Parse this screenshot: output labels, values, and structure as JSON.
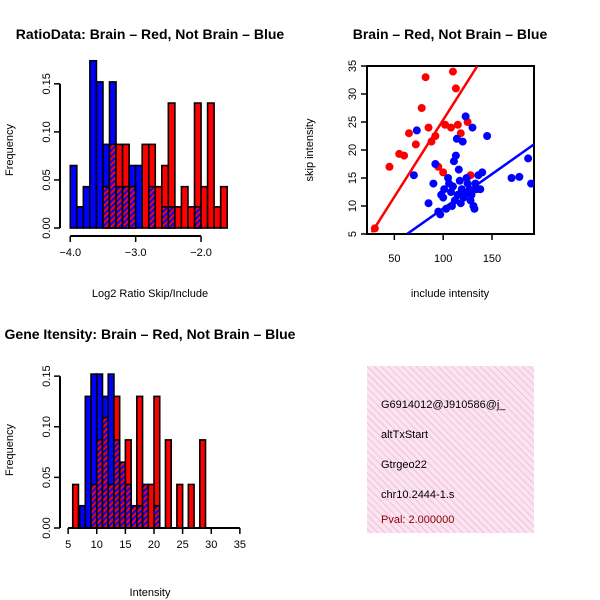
{
  "colors": {
    "red": "#ff0000",
    "blue": "#0000ff",
    "overlap": "#9b2cbe",
    "panel_fill": "#fae4f0",
    "panel_hatch": "#ef9fce",
    "pval": "#8b0000"
  },
  "chart_data": [
    {
      "id": "ratio_hist",
      "type": "bar",
      "title": "RatioData: Brain – Red, Not Brain – Blue",
      "xlabel": "Log2 Ratio Skip/Include",
      "ylabel": "Frequency",
      "xlim": [
        -4.05,
        -1.45
      ],
      "ylim": [
        0,
        0.18
      ],
      "xticks": [
        -4.0,
        -3.0,
        -2.0
      ],
      "xtick_labels": [
        "−4.0",
        "−3.0",
        "−2.0"
      ],
      "yticks": [
        0.0,
        0.05,
        0.1,
        0.15
      ],
      "ytick_labels": [
        "0.00",
        "0.05",
        "0.10",
        "0.15"
      ],
      "bin_width": 0.1,
      "series": [
        {
          "name": "Not Brain",
          "color": "blue",
          "bars": [
            {
              "x": -4.0,
              "y": 0.065
            },
            {
              "x": -3.9,
              "y": 0.022
            },
            {
              "x": -3.8,
              "y": 0.043
            },
            {
              "x": -3.7,
              "y": 0.174
            },
            {
              "x": -3.6,
              "y": 0.152
            },
            {
              "x": -3.5,
              "y": 0.087
            },
            {
              "x": -3.4,
              "y": 0.152
            },
            {
              "x": -3.3,
              "y": 0.043
            },
            {
              "x": -3.2,
              "y": 0.043
            },
            {
              "x": -3.1,
              "y": 0.065
            },
            {
              "x": -3.0,
              "y": 0.065
            },
            {
              "x": -2.8,
              "y": 0.043
            },
            {
              "x": -2.6,
              "y": 0.022
            },
            {
              "x": -2.5,
              "y": 0.022
            },
            {
              "x": -2.1,
              "y": 0.022
            }
          ]
        },
        {
          "name": "Brain",
          "color": "red",
          "bars": [
            {
              "x": -3.5,
              "y": 0.043
            },
            {
              "x": -3.4,
              "y": 0.087
            },
            {
              "x": -3.3,
              "y": 0.087
            },
            {
              "x": -3.2,
              "y": 0.087
            },
            {
              "x": -3.1,
              "y": 0.043
            },
            {
              "x": -2.9,
              "y": 0.087
            },
            {
              "x": -2.8,
              "y": 0.087
            },
            {
              "x": -2.7,
              "y": 0.043
            },
            {
              "x": -2.6,
              "y": 0.065
            },
            {
              "x": -2.5,
              "y": 0.13
            },
            {
              "x": -2.4,
              "y": 0.022
            },
            {
              "x": -2.3,
              "y": 0.043
            },
            {
              "x": -2.2,
              "y": 0.022
            },
            {
              "x": -2.1,
              "y": 0.13
            },
            {
              "x": -2.0,
              "y": 0.043
            },
            {
              "x": -1.9,
              "y": 0.13
            },
            {
              "x": -1.8,
              "y": 0.022
            },
            {
              "x": -1.7,
              "y": 0.043
            }
          ]
        }
      ]
    },
    {
      "id": "scatter",
      "type": "scatter",
      "title": "Brain – Red, Not Brain – Blue",
      "xlabel": "include intensity",
      "ylabel": "skip intensity",
      "xlim": [
        22,
        193
      ],
      "ylim": [
        5,
        35
      ],
      "xticks": [
        50,
        100,
        150
      ],
      "xtick_labels": [
        "50",
        "100",
        "150"
      ],
      "yticks": [
        5,
        10,
        15,
        20,
        25,
        30,
        35
      ],
      "ytick_labels": [
        "5",
        "10",
        "15",
        "20",
        "25",
        "30",
        "35"
      ],
      "series": [
        {
          "name": "Brain",
          "color": "red",
          "points": [
            [
              30,
              6
            ],
            [
              45,
              17
            ],
            [
              55,
              19.3
            ],
            [
              60,
              19
            ],
            [
              65,
              23
            ],
            [
              72,
              21
            ],
            [
              78,
              27.5
            ],
            [
              82,
              33
            ],
            [
              85,
              24
            ],
            [
              88,
              21.5
            ],
            [
              92,
              22.5
            ],
            [
              95,
              17
            ],
            [
              100,
              16
            ],
            [
              102,
              24.5
            ],
            [
              108,
              24
            ],
            [
              110,
              34
            ],
            [
              113,
              31
            ],
            [
              115,
              24.5
            ],
            [
              118,
              23
            ],
            [
              125,
              25
            ],
            [
              128,
              15.5
            ]
          ],
          "fit": [
            [
              27,
              5.3
            ],
            [
              135,
              35
            ]
          ]
        },
        {
          "name": "Not Brain",
          "color": "blue",
          "points": [
            [
              70,
              15.5
            ],
            [
              73,
              23.5
            ],
            [
              85,
              10.5
            ],
            [
              90,
              14
            ],
            [
              92,
              17.5
            ],
            [
              95,
              9
            ],
            [
              97,
              8.5
            ],
            [
              98,
              12
            ],
            [
              100,
              11.5
            ],
            [
              101,
              13
            ],
            [
              103,
              9.5
            ],
            [
              105,
              15
            ],
            [
              106,
              14
            ],
            [
              108,
              12.5
            ],
            [
              109,
              10
            ],
            [
              110,
              13.5
            ],
            [
              111,
              18
            ],
            [
              112,
              11
            ],
            [
              113,
              19
            ],
            [
              114,
              22
            ],
            [
              115,
              12
            ],
            [
              116,
              16.5
            ],
            [
              117,
              14.5
            ],
            [
              118,
              10.5
            ],
            [
              119,
              13
            ],
            [
              120,
              21.5
            ],
            [
              121,
              11.5
            ],
            [
              122,
              12
            ],
            [
              123,
              26
            ],
            [
              124,
              15
            ],
            [
              125,
              14
            ],
            [
              126,
              12.5
            ],
            [
              127,
              13
            ],
            [
              128,
              11
            ],
            [
              129,
              12
            ],
            [
              130,
              24
            ],
            [
              131,
              10
            ],
            [
              132,
              9.5
            ],
            [
              133,
              14
            ],
            [
              134,
              13
            ],
            [
              136,
              15.5
            ],
            [
              138,
              13
            ],
            [
              140,
              16
            ],
            [
              145,
              22.5
            ],
            [
              170,
              15
            ],
            [
              178,
              15.2
            ],
            [
              187,
              18.5
            ],
            [
              190,
              14
            ]
          ],
          "fit": [
            [
              63,
              5
            ],
            [
              193,
              21
            ]
          ]
        }
      ]
    },
    {
      "id": "intensity_hist",
      "type": "bar",
      "title": "Gene Itensity: Brain – Red, Not Brain – Blue",
      "xlabel": "Intensity",
      "ylabel": "Frequency",
      "xlim": [
        4.8,
        34.5
      ],
      "ylim": [
        0,
        0.16
      ],
      "xticks": [
        5,
        10,
        15,
        20,
        25,
        30,
        35
      ],
      "xtick_labels": [
        "5",
        "10",
        "15",
        "20",
        "25",
        "30",
        "35"
      ],
      "yticks": [
        0.0,
        0.05,
        0.1,
        0.15
      ],
      "ytick_labels": [
        "0.00",
        "0.05",
        "0.10",
        "0.15"
      ],
      "bin_width": 1,
      "series": [
        {
          "name": "Not Brain",
          "color": "blue",
          "bars": [
            {
              "x": 7,
              "y": 0.022
            },
            {
              "x": 8,
              "y": 0.13
            },
            {
              "x": 9,
              "y": 0.152
            },
            {
              "x": 10,
              "y": 0.152
            },
            {
              "x": 11,
              "y": 0.13
            },
            {
              "x": 12,
              "y": 0.152
            },
            {
              "x": 13,
              "y": 0.087
            },
            {
              "x": 14,
              "y": 0.065
            },
            {
              "x": 15,
              "y": 0.043
            },
            {
              "x": 16,
              "y": 0.022
            },
            {
              "x": 17,
              "y": 0.022
            },
            {
              "x": 18,
              "y": 0.043
            },
            {
              "x": 20,
              "y": 0.022
            }
          ]
        },
        {
          "name": "Brain",
          "color": "red",
          "bars": [
            {
              "x": 5.8,
              "y": 0.043
            },
            {
              "x": 9,
              "y": 0.043
            },
            {
              "x": 10,
              "y": 0.087
            },
            {
              "x": 11,
              "y": 0.109
            },
            {
              "x": 12,
              "y": 0.043
            },
            {
              "x": 13,
              "y": 0.13
            },
            {
              "x": 14,
              "y": 0.065
            },
            {
              "x": 15,
              "y": 0.087
            },
            {
              "x": 16,
              "y": 0.022
            },
            {
              "x": 17,
              "y": 0.13
            },
            {
              "x": 18,
              "y": 0.043
            },
            {
              "x": 19,
              "y": 0.043
            },
            {
              "x": 20,
              "y": 0.13
            },
            {
              "x": 22,
              "y": 0.087
            },
            {
              "x": 24,
              "y": 0.043
            },
            {
              "x": 26,
              "y": 0.043
            },
            {
              "x": 28,
              "y": 0.087
            }
          ]
        }
      ]
    }
  ],
  "info_panel": {
    "lines": [
      "G6914012@J910586@j_",
      "altTxStart",
      "Gtrgeo22",
      "chr10.2444-1.s"
    ],
    "pval": "Pval: 2.000000"
  }
}
